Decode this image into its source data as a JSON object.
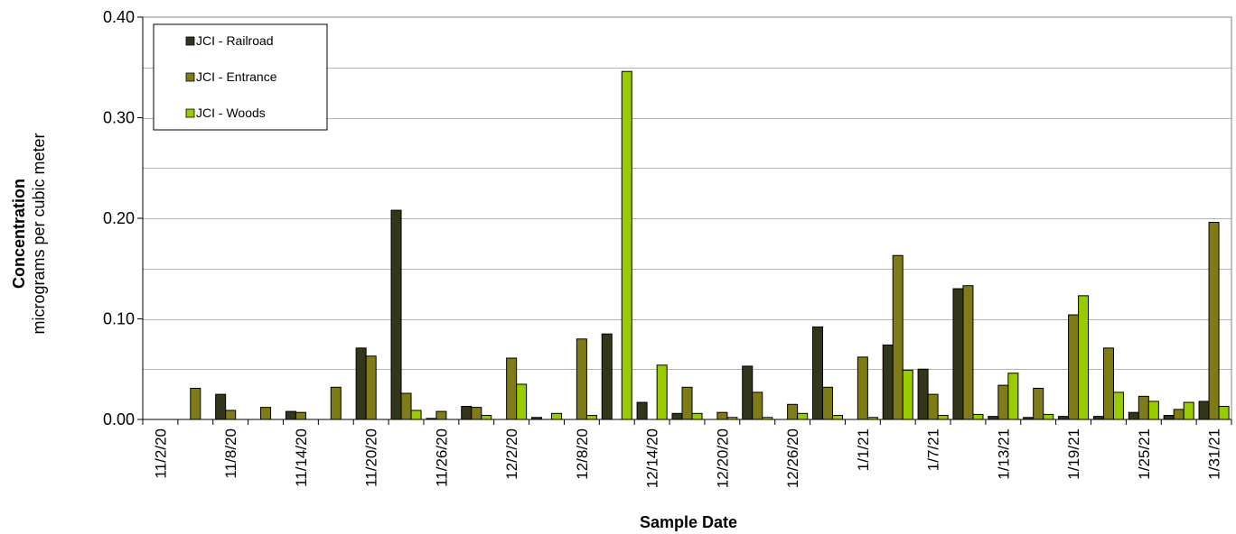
{
  "chart_data": {
    "type": "bar",
    "title": "",
    "xlabel": "Sample Date",
    "ylabel": "Concentration",
    "ylabel_sub": "micrograms per cubic meter",
    "ylim": [
      0,
      0.4
    ],
    "yticks": [
      "0.00",
      "0.10",
      "0.20",
      "0.30",
      "0.40"
    ],
    "grid": true,
    "legend_position": "top-left",
    "x_tick_labels": [
      "11/2/20",
      "11/8/20",
      "11/14/20",
      "11/20/20",
      "11/26/20",
      "12/2/20",
      "12/8/20",
      "12/14/20",
      "12/20/20",
      "12/26/20",
      "1/1/21",
      "1/7/21",
      "1/13/21",
      "1/19/21",
      "1/25/21",
      "1/31/21"
    ],
    "categories": [
      "11/2/20",
      "11/5/20",
      "11/8/20",
      "11/11/20",
      "11/14/20",
      "11/17/20",
      "11/20/20",
      "11/23/20",
      "11/26/20",
      "11/29/20",
      "12/2/20",
      "12/5/20",
      "12/8/20",
      "12/11/20",
      "12/14/20",
      "12/17/20",
      "12/20/20",
      "12/23/20",
      "12/26/20",
      "12/29/20",
      "1/1/21",
      "1/4/21",
      "1/7/21",
      "1/10/21",
      "1/13/21",
      "1/16/21",
      "1/19/21",
      "1/22/21",
      "1/25/21",
      "1/28/21",
      "1/31/21"
    ],
    "series": [
      {
        "name": "JCI - Railroad",
        "color": "#33361a",
        "values": [
          0,
          null,
          0.025,
          null,
          0.008,
          null,
          0.071,
          0.208,
          0.001,
          0.013,
          null,
          0.002,
          null,
          0.085,
          0.017,
          0.006,
          null,
          0.053,
          null,
          0.092,
          null,
          0.074,
          0.05,
          0.13,
          0.003,
          0.002,
          0.003,
          0.003,
          0.007,
          0.004,
          0.018
        ]
      },
      {
        "name": "JCI - Entrance",
        "color": "#7f7c17",
        "values": [
          null,
          0.031,
          0.009,
          0.012,
          0.007,
          0.032,
          0.063,
          0.026,
          0.008,
          0.012,
          0.061,
          null,
          0.08,
          null,
          null,
          0.032,
          0.007,
          0.027,
          0.015,
          0.032,
          0.062,
          0.163,
          0.025,
          0.133,
          0.034,
          0.031,
          0.104,
          0.071,
          0.023,
          0.01,
          0.196
        ]
      },
      {
        "name": "JCI - Woods",
        "color": "#99cc00",
        "values": [
          null,
          null,
          null,
          null,
          null,
          null,
          null,
          0.009,
          null,
          0.004,
          0.035,
          0.006,
          0.004,
          0.346,
          0.054,
          0.006,
          0.002,
          0.002,
          0.006,
          0.004,
          0.002,
          0.049,
          0.004,
          0.005,
          0.046,
          0.005,
          0.123,
          0.027,
          0.018,
          0.017,
          0.013
        ]
      }
    ]
  }
}
